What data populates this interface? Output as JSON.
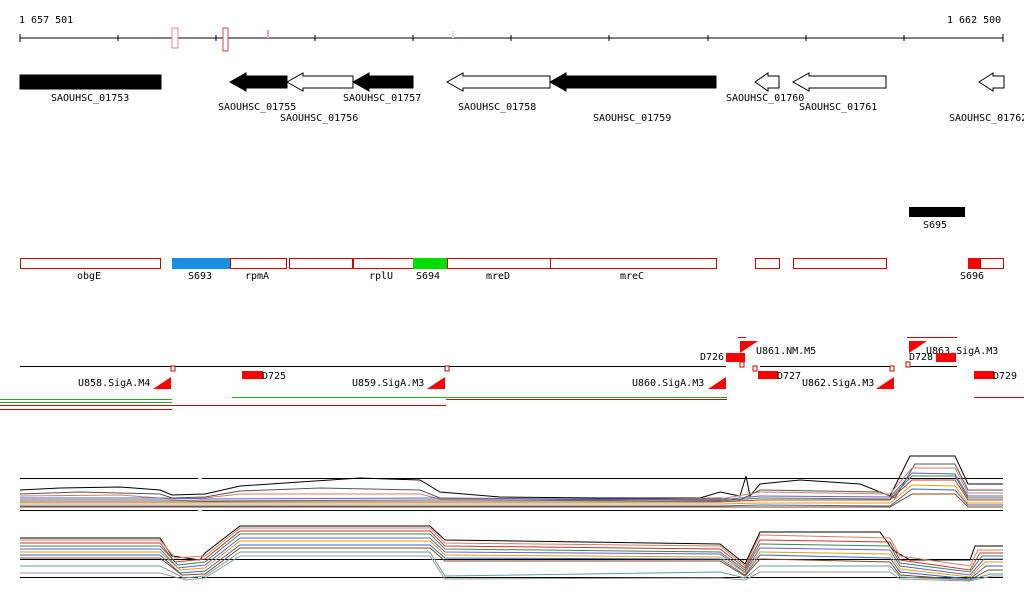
{
  "ruler": {
    "start_label": "1 657 501",
    "end_label": "1 662 500"
  },
  "genes": [
    {
      "label": "SAOUHSC_01753",
      "fill": "black",
      "dir": "right"
    },
    {
      "label": "SAOUHSC_01755",
      "fill": "black",
      "dir": "left"
    },
    {
      "label": "SAOUHSC_01756",
      "fill": "white",
      "dir": "left"
    },
    {
      "label": "SAOUHSC_01757",
      "fill": "black",
      "dir": "left"
    },
    {
      "label": "SAOUHSC_01758",
      "fill": "white",
      "dir": "left"
    },
    {
      "label": "SAOUHSC_01759",
      "fill": "black",
      "dir": "left"
    },
    {
      "label": "SAOUHSC_01760",
      "fill": "white",
      "dir": "left"
    },
    {
      "label": "SAOUHSC_01761",
      "fill": "white",
      "dir": "left"
    },
    {
      "label": "SAOUHSC_01762",
      "fill": "white",
      "dir": "left"
    }
  ],
  "s695": {
    "label": "S695"
  },
  "annotations": [
    {
      "label": "obgE",
      "color": "#cc0000",
      "filled": false
    },
    {
      "label": "S693",
      "color": "#1a8fe0",
      "filled": true
    },
    {
      "label": "rpmA",
      "color": "#cc0000",
      "filled": false
    },
    {
      "label": "",
      "color": "#cc0000",
      "filled": false
    },
    {
      "label": "rplU",
      "color": "#cc0000",
      "filled": false
    },
    {
      "label": "S694",
      "color": "#00dd00",
      "filled": true
    },
    {
      "label": "mreD",
      "color": "#cc0000",
      "filled": false
    },
    {
      "label": "mreC",
      "color": "#cc0000",
      "filled": false
    },
    {
      "label": "",
      "color": "#cc0000",
      "filled": false
    },
    {
      "label": "",
      "color": "#cc0000",
      "filled": false
    },
    {
      "label": "S696",
      "color": "#ff0000",
      "filled": true
    }
  ],
  "promoters": [
    {
      "label": "U858.SigA.M4"
    },
    {
      "label": "U859.SigA.M3"
    },
    {
      "label": "U860.SigA.M3"
    },
    {
      "label": "U861.NM.M5"
    },
    {
      "label": "U862.SigA.M3"
    },
    {
      "label": "U863.SigA.M3"
    }
  ],
  "terminators": [
    {
      "label": "D725"
    },
    {
      "label": "D726"
    },
    {
      "label": "D727"
    },
    {
      "label": "D728"
    },
    {
      "label": "D729"
    }
  ],
  "colors": {
    "feature_red": "#ff0000",
    "annotation_outline": "#cc0000",
    "s693_blue": "#1a8fe0",
    "s694_green": "#00dd00",
    "coverage_green": "#22aa22"
  }
}
